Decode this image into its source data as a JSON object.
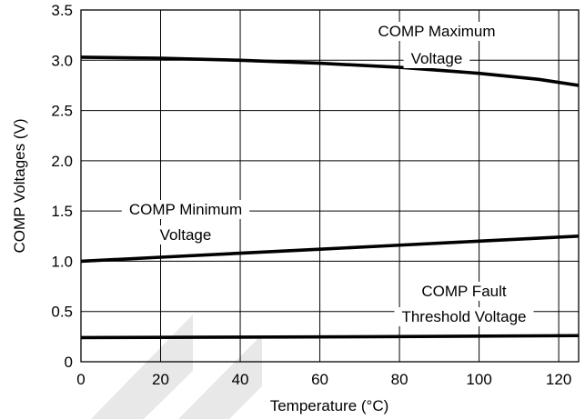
{
  "chart_data": {
    "type": "line",
    "xlabel": "Temperature (°C)",
    "ylabel": "COMP Voltages (V)",
    "xlim": [
      0,
      125
    ],
    "ylim": [
      0,
      3.5
    ],
    "x_ticks": [
      0,
      20,
      40,
      60,
      80,
      100,
      120
    ],
    "y_ticks": [
      "0",
      "0.5",
      "1.0",
      "1.5",
      "2.0",
      "2.5",
      "3.0",
      "3.5"
    ],
    "grid": true,
    "series": [
      {
        "name": "COMP Maximum Voltage",
        "label_lines": [
          "COMP Maximum",
          "Voltage"
        ],
        "x": [
          0,
          20,
          40,
          60,
          80,
          100,
          115,
          125
        ],
        "y": [
          3.03,
          3.02,
          3.0,
          2.97,
          2.93,
          2.87,
          2.81,
          2.75
        ]
      },
      {
        "name": "COMP Minimum Voltage",
        "label_lines": [
          "COMP Minimum",
          "Voltage"
        ],
        "x": [
          0,
          20,
          40,
          60,
          80,
          100,
          125
        ],
        "y": [
          1.0,
          1.04,
          1.08,
          1.12,
          1.16,
          1.2,
          1.25
        ]
      },
      {
        "name": "COMP Fault Threshold Voltage",
        "label_lines": [
          "COMP Fault",
          "Threshold Voltage"
        ],
        "x": [
          0,
          40,
          80,
          125
        ],
        "y": [
          0.24,
          0.245,
          0.25,
          0.26
        ]
      }
    ]
  },
  "colors": {
    "line": "#000000",
    "grid": "#000000",
    "background": "#ffffff",
    "watermark": "#e8e8e8"
  }
}
